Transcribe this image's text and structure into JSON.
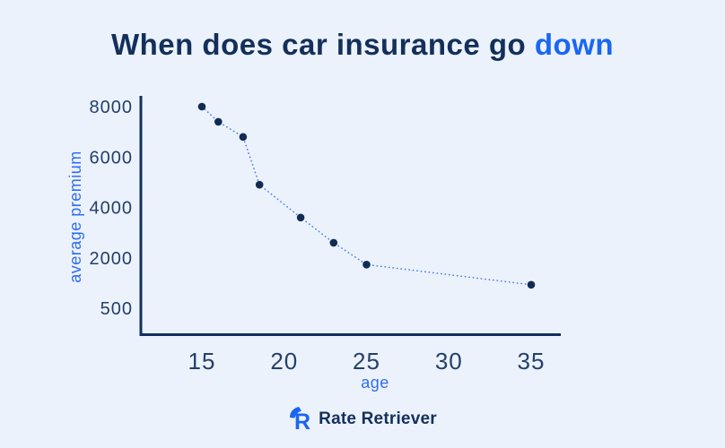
{
  "title": {
    "main": "When does car insurance go",
    "accent": "down"
  },
  "colors": {
    "background": "#ecf2fb",
    "navy": "#13305b",
    "accent_blue": "#1a66f2",
    "dot_navy": "#102c52",
    "dotted_line": "#4a80f0",
    "tick_text": "#23406b"
  },
  "chart_data": {
    "type": "scatter",
    "title": "When does car insurance go down",
    "xlabel": "age",
    "ylabel": "average premium",
    "x_ticks": [
      15,
      20,
      25,
      30,
      35
    ],
    "y_ticks": [
      8000,
      6000,
      4000,
      2000,
      500
    ],
    "line_style": "dotted",
    "grid": false,
    "points": [
      {
        "age": 15,
        "premium": 8000
      },
      {
        "age": 16,
        "premium": 7400
      },
      {
        "age": 17.5,
        "premium": 6800
      },
      {
        "age": 18.5,
        "premium": 4900
      },
      {
        "age": 21,
        "premium": 3600
      },
      {
        "age": 23,
        "premium": 2600
      },
      {
        "age": 25,
        "premium": 1800
      },
      {
        "age": 35,
        "premium": 1200
      }
    ]
  },
  "footer": {
    "brand": "Rate Retriever"
  }
}
